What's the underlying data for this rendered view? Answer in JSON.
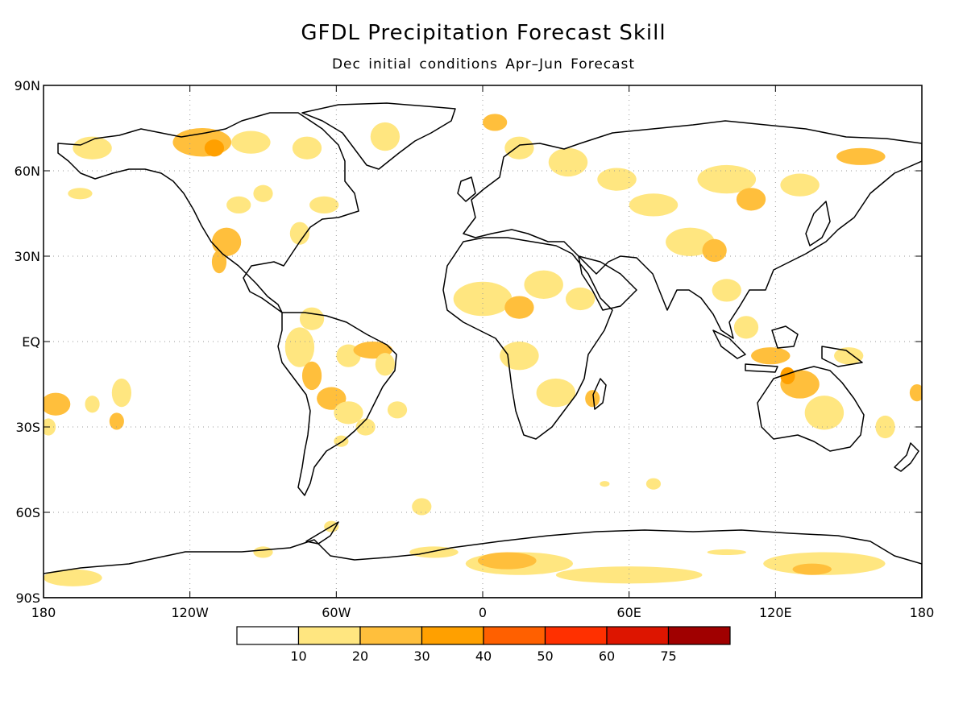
{
  "title": "GFDL Precipitation Forecast Skill",
  "subtitle": "Dec initial conditions  Apr–Jun Forecast",
  "lat_ticks": [
    {
      "value": 90,
      "label": "90N"
    },
    {
      "value": 60,
      "label": "60N"
    },
    {
      "value": 30,
      "label": "30N"
    },
    {
      "value": 0,
      "label": "EQ"
    },
    {
      "value": -30,
      "label": "30S"
    },
    {
      "value": -60,
      "label": "60S"
    },
    {
      "value": -90,
      "label": "90S"
    }
  ],
  "lon_ticks": [
    {
      "value": -180,
      "label": "180"
    },
    {
      "value": -120,
      "label": "120W"
    },
    {
      "value": -60,
      "label": "60W"
    },
    {
      "value": 0,
      "label": "0"
    },
    {
      "value": 60,
      "label": "60E"
    },
    {
      "value": 120,
      "label": "120E"
    },
    {
      "value": 180,
      "label": "180"
    }
  ],
  "colorbar": {
    "colors": [
      "#ffffff",
      "#ffe680",
      "#ffbf3c",
      "#ffa000",
      "#ff6000",
      "#ff3000",
      "#dd1500",
      "#a00000"
    ],
    "labels": [
      "10",
      "20",
      "30",
      "40",
      "50",
      "60",
      "75"
    ]
  },
  "skill_patches": [
    {
      "lon": -175,
      "lat": -22,
      "rlon": 6,
      "rlat": 4,
      "level": 2
    },
    {
      "lon": -178,
      "lat": -30,
      "rlon": 3,
      "rlat": 3,
      "level": 1
    },
    {
      "lon": -160,
      "lat": -22,
      "rlon": 3,
      "rlat": 3,
      "level": 1
    },
    {
      "lon": -148,
      "lat": -18,
      "rlon": 4,
      "rlat": 5,
      "level": 1
    },
    {
      "lon": -150,
      "lat": -28,
      "rlon": 3,
      "rlat": 3,
      "level": 2
    },
    {
      "lon": -168,
      "lat": -83,
      "rlon": 12,
      "rlat": 3,
      "level": 1
    },
    {
      "lon": -160,
      "lat": 68,
      "rlon": 8,
      "rlat": 4,
      "level": 1
    },
    {
      "lon": -115,
      "lat": 70,
      "rlon": 12,
      "rlat": 5,
      "level": 2
    },
    {
      "lon": -110,
      "lat": 68,
      "rlon": 4,
      "rlat": 3,
      "level": 3
    },
    {
      "lon": -95,
      "lat": 70,
      "rlon": 8,
      "rlat": 4,
      "level": 1
    },
    {
      "lon": -72,
      "lat": 68,
      "rlon": 6,
      "rlat": 4,
      "level": 1
    },
    {
      "lon": -40,
      "lat": 72,
      "rlon": 6,
      "rlat": 5,
      "level": 1
    },
    {
      "lon": -165,
      "lat": 52,
      "rlon": 5,
      "rlat": 2,
      "level": 1
    },
    {
      "lon": -100,
      "lat": 48,
      "rlon": 5,
      "rlat": 3,
      "level": 1
    },
    {
      "lon": -90,
      "lat": 52,
      "rlon": 4,
      "rlat": 3,
      "level": 1
    },
    {
      "lon": -65,
      "lat": 48,
      "rlon": 6,
      "rlat": 3,
      "level": 1
    },
    {
      "lon": -105,
      "lat": 35,
      "rlon": 6,
      "rlat": 5,
      "level": 2
    },
    {
      "lon": -108,
      "lat": 28,
      "rlon": 3,
      "rlat": 4,
      "level": 2
    },
    {
      "lon": -75,
      "lat": 38,
      "rlon": 4,
      "rlat": 4,
      "level": 1
    },
    {
      "lon": -70,
      "lat": 8,
      "rlon": 5,
      "rlat": 4,
      "level": 1
    },
    {
      "lon": -75,
      "lat": -2,
      "rlon": 6,
      "rlat": 7,
      "level": 1
    },
    {
      "lon": -70,
      "lat": -12,
      "rlon": 4,
      "rlat": 5,
      "level": 2
    },
    {
      "lon": -55,
      "lat": -5,
      "rlon": 5,
      "rlat": 4,
      "level": 1
    },
    {
      "lon": -45,
      "lat": -3,
      "rlon": 8,
      "rlat": 3,
      "level": 2
    },
    {
      "lon": -40,
      "lat": -8,
      "rlon": 4,
      "rlat": 4,
      "level": 1
    },
    {
      "lon": -62,
      "lat": -20,
      "rlon": 6,
      "rlat": 4,
      "level": 2
    },
    {
      "lon": -55,
      "lat": -25,
      "rlon": 6,
      "rlat": 4,
      "level": 1
    },
    {
      "lon": -48,
      "lat": -30,
      "rlon": 4,
      "rlat": 3,
      "level": 1
    },
    {
      "lon": -35,
      "lat": -24,
      "rlon": 4,
      "rlat": 3,
      "level": 1
    },
    {
      "lon": -58,
      "lat": -35,
      "rlon": 3,
      "rlat": 2,
      "level": 1
    },
    {
      "lon": -25,
      "lat": -58,
      "rlon": 4,
      "rlat": 3,
      "level": 1
    },
    {
      "lon": -62,
      "lat": -65,
      "rlon": 3,
      "rlat": 2,
      "level": 1
    },
    {
      "lon": -90,
      "lat": -74,
      "rlon": 4,
      "rlat": 2,
      "level": 1
    },
    {
      "lon": 5,
      "lat": 77,
      "rlon": 5,
      "rlat": 3,
      "level": 2
    },
    {
      "lon": 15,
      "lat": 68,
      "rlon": 6,
      "rlat": 4,
      "level": 1
    },
    {
      "lon": 35,
      "lat": 63,
      "rlon": 8,
      "rlat": 5,
      "level": 1
    },
    {
      "lon": 55,
      "lat": 57,
      "rlon": 8,
      "rlat": 4,
      "level": 1
    },
    {
      "lon": 70,
      "lat": 48,
      "rlon": 10,
      "rlat": 4,
      "level": 1
    },
    {
      "lon": 100,
      "lat": 57,
      "rlon": 12,
      "rlat": 5,
      "level": 1
    },
    {
      "lon": 110,
      "lat": 50,
      "rlon": 6,
      "rlat": 4,
      "level": 2
    },
    {
      "lon": 130,
      "lat": 55,
      "rlon": 8,
      "rlat": 4,
      "level": 1
    },
    {
      "lon": 155,
      "lat": 65,
      "rlon": 10,
      "rlat": 3,
      "level": 2
    },
    {
      "lon": 85,
      "lat": 35,
      "rlon": 10,
      "rlat": 5,
      "level": 1
    },
    {
      "lon": 95,
      "lat": 32,
      "rlon": 5,
      "rlat": 4,
      "level": 2
    },
    {
      "lon": 0,
      "lat": 15,
      "rlon": 12,
      "rlat": 6,
      "level": 1
    },
    {
      "lon": 15,
      "lat": 12,
      "rlon": 6,
      "rlat": 4,
      "level": 2
    },
    {
      "lon": 25,
      "lat": 20,
      "rlon": 8,
      "rlat": 5,
      "level": 1
    },
    {
      "lon": 40,
      "lat": 15,
      "rlon": 6,
      "rlat": 4,
      "level": 1
    },
    {
      "lon": 15,
      "lat": -5,
      "rlon": 8,
      "rlat": 5,
      "level": 1
    },
    {
      "lon": 30,
      "lat": -18,
      "rlon": 8,
      "rlat": 5,
      "level": 1
    },
    {
      "lon": 45,
      "lat": -20,
      "rlon": 3,
      "rlat": 3,
      "level": 2
    },
    {
      "lon": 50,
      "lat": -50,
      "rlon": 2,
      "rlat": 1,
      "level": 1
    },
    {
      "lon": 70,
      "lat": -50,
      "rlon": 3,
      "rlat": 2,
      "level": 1
    },
    {
      "lon": 100,
      "lat": 18,
      "rlon": 6,
      "rlat": 4,
      "level": 1
    },
    {
      "lon": 108,
      "lat": 5,
      "rlon": 5,
      "rlat": 4,
      "level": 1
    },
    {
      "lon": 118,
      "lat": -5,
      "rlon": 8,
      "rlat": 3,
      "level": 2
    },
    {
      "lon": 130,
      "lat": -15,
      "rlon": 8,
      "rlat": 5,
      "level": 2
    },
    {
      "lon": 125,
      "lat": -12,
      "rlon": 3,
      "rlat": 3,
      "level": 3
    },
    {
      "lon": 140,
      "lat": -25,
      "rlon": 8,
      "rlat": 6,
      "level": 1
    },
    {
      "lon": 150,
      "lat": -5,
      "rlon": 6,
      "rlat": 3,
      "level": 1
    },
    {
      "lon": 178,
      "lat": -18,
      "rlon": 3,
      "rlat": 3,
      "level": 2
    },
    {
      "lon": 165,
      "lat": -30,
      "rlon": 4,
      "rlat": 4,
      "level": 1
    },
    {
      "lon": -20,
      "lat": -74,
      "rlon": 10,
      "rlat": 2,
      "level": 1
    },
    {
      "lon": 15,
      "lat": -78,
      "rlon": 22,
      "rlat": 4,
      "level": 1
    },
    {
      "lon": 10,
      "lat": -77,
      "rlon": 12,
      "rlat": 3,
      "level": 2
    },
    {
      "lon": 60,
      "lat": -82,
      "rlon": 30,
      "rlat": 3,
      "level": 1
    },
    {
      "lon": 100,
      "lat": -74,
      "rlon": 8,
      "rlat": 1,
      "level": 1
    },
    {
      "lon": 140,
      "lat": -78,
      "rlon": 25,
      "rlat": 4,
      "level": 1
    },
    {
      "lon": 135,
      "lat": -80,
      "rlon": 8,
      "rlat": 2,
      "level": 2
    }
  ]
}
